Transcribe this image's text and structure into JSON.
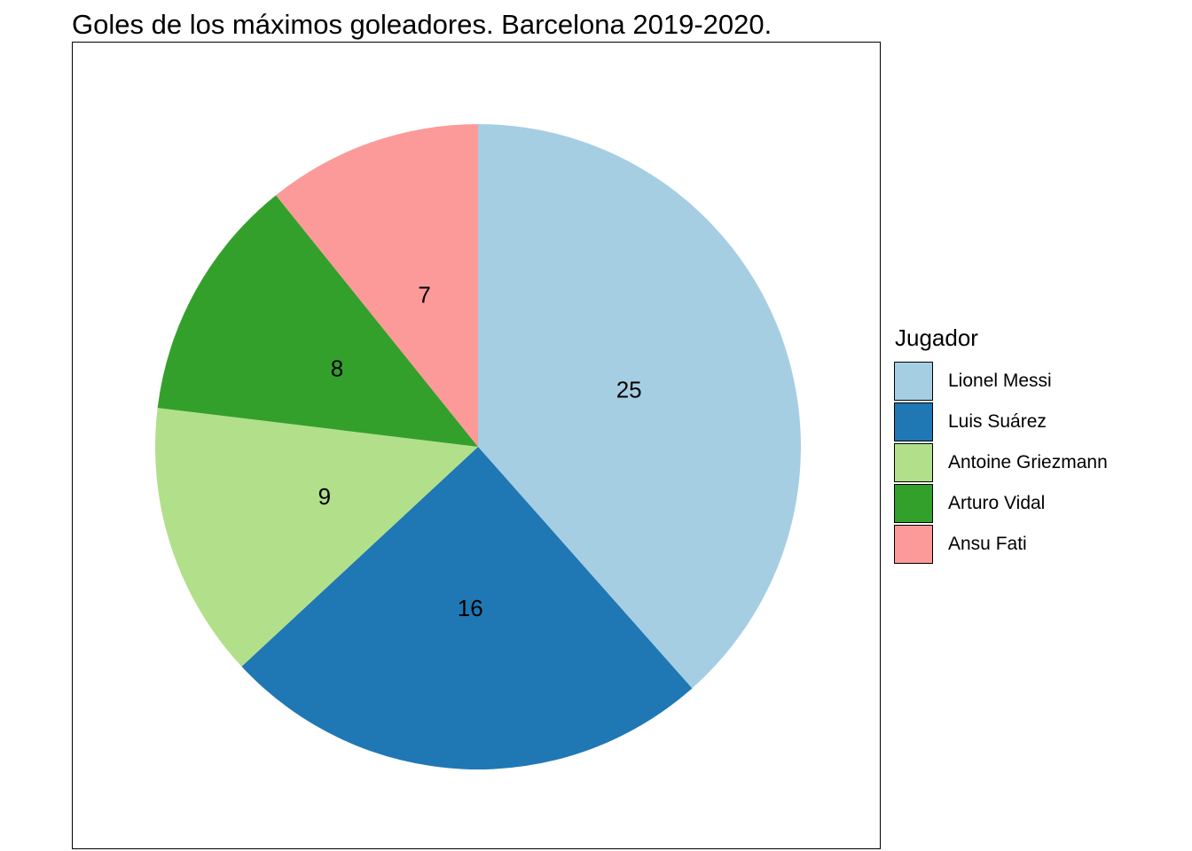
{
  "chart_data": {
    "type": "pie",
    "title": "Goles de los máximos goleadores. Barcelona 2019-2020.",
    "legend_title": "Jugador",
    "legend_position": "right",
    "start_angle": "12 o'clock",
    "direction": "clockwise",
    "slices": [
      {
        "label": "Lionel Messi",
        "value": 25,
        "color": "#A6CEE3"
      },
      {
        "label": "Luis Suárez",
        "value": 16,
        "color": "#1F78B4"
      },
      {
        "label": "Antoine Griezmann",
        "value": 9,
        "color": "#B2DF8A"
      },
      {
        "label": "Arturo Vidal",
        "value": 8,
        "color": "#33A02C"
      },
      {
        "label": "Ansu Fati",
        "value": 7,
        "color": "#FB9A99"
      }
    ]
  }
}
